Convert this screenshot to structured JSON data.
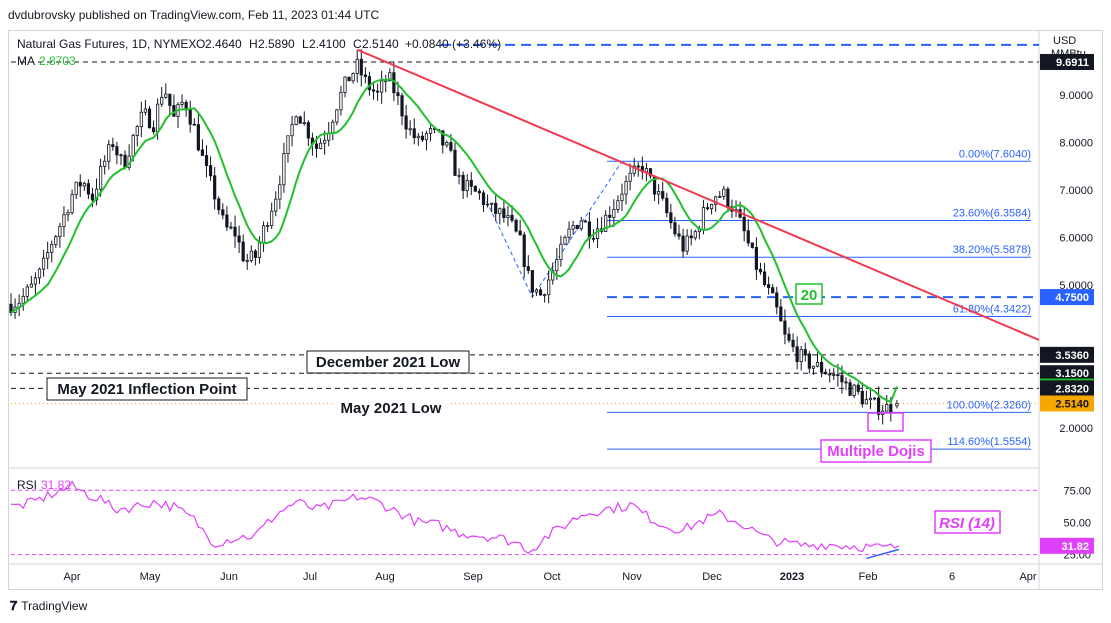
{
  "attribution": "dvdubrovsky published on TradingView.com, Feb 11, 2023 01:44 UTC",
  "footer": {
    "logo": "𝟕",
    "brand": "TradingView"
  },
  "header": {
    "symbol_line": "Natural Gas Futures, 1D, NYMEX",
    "ohlc": [
      {
        "k": "O",
        "v": "2.4640"
      },
      {
        "k": "H",
        "v": "2.5890"
      },
      {
        "k": "L",
        "v": "2.4100"
      },
      {
        "k": "C",
        "v": "2.5140"
      }
    ],
    "change": "+0.0840 (+3.46%)",
    "ma_label": "MA",
    "ma_value": "2.8703"
  },
  "axis": {
    "currency": "USD",
    "unit": "MMBtu",
    "ticks": [
      {
        "v": 9.0,
        "label": "9.0000"
      },
      {
        "v": 8.0,
        "label": "8.0000"
      },
      {
        "v": 7.0,
        "label": "7.0000"
      },
      {
        "v": 6.0,
        "label": "6.0000"
      },
      {
        "v": 5.0,
        "label": "5.0000"
      },
      {
        "v": 2.0,
        "label": "2.0000"
      }
    ],
    "price_tags": [
      {
        "v": 9.6911,
        "label": "9.6911",
        "bg": "#131722",
        "fg": "#ffffff"
      },
      {
        "v": 4.75,
        "label": "4.7500",
        "bg": "#2962ff",
        "fg": "#ffffff"
      },
      {
        "v": 3.536,
        "label": "3.5360",
        "bg": "#131722",
        "fg": "#ffffff"
      },
      {
        "v": 3.15,
        "label": "3.1500",
        "bg": "#131722",
        "fg": "#ffffff"
      },
      {
        "v": 2.8703,
        "label": "2.8703",
        "bg": "#22c02e",
        "fg": "#ffffff"
      },
      {
        "v": 2.832,
        "label": "2.8320",
        "bg": "#131722",
        "fg": "#ffffff"
      },
      {
        "v": 2.514,
        "label": "2.5140",
        "bg": "#f7a600",
        "fg": "#131722"
      }
    ],
    "time_labels": [
      {
        "label": "Apr",
        "x": 71,
        "bold": false
      },
      {
        "label": "May",
        "x": 149,
        "bold": false
      },
      {
        "label": "Jun",
        "x": 228,
        "bold": false
      },
      {
        "label": "Jul",
        "x": 309,
        "bold": false
      },
      {
        "label": "Aug",
        "x": 384,
        "bold": false
      },
      {
        "label": "Sep",
        "x": 472,
        "bold": false
      },
      {
        "label": "Oct",
        "x": 551,
        "bold": false
      },
      {
        "label": "Nov",
        "x": 631,
        "bold": false
      },
      {
        "label": "Dec",
        "x": 711,
        "bold": false
      },
      {
        "label": "2023",
        "x": 791,
        "bold": true
      },
      {
        "label": "Feb",
        "x": 867,
        "bold": false
      },
      {
        "label": "6",
        "x": 951,
        "bold": false
      },
      {
        "label": "Apr",
        "x": 1027,
        "bold": false
      }
    ]
  },
  "fibonacci": [
    {
      "label": "0.00%(7.6040)",
      "v": 7.604
    },
    {
      "label": "23.60%(6.3584)",
      "v": 6.3584
    },
    {
      "label": "38.20%(5.5878)",
      "v": 5.5878
    },
    {
      "label": "61.80%(4.3422)",
      "v": 4.3422
    },
    {
      "label": "100.00%(2.3260)",
      "v": 2.326
    },
    {
      "label": "114.60%(1.5554)",
      "v": 1.5554
    }
  ],
  "annotations": {
    "dec_2021_low": "December 2021 Low",
    "may_2021_inflection": "May 2021 Inflection Point",
    "may_2021_low": "May 2021 Low",
    "ma_badge": "20",
    "dojis": "Multiple Dojis",
    "rsi_title": "RSI (14)"
  },
  "colors": {
    "up": "#131722",
    "down": "#131722",
    "ma": "#22c02e",
    "trendline": "#f2394f",
    "fib": "#2962ff",
    "rsi": "#e040fb",
    "price_line": "#f7a600"
  },
  "rsi": {
    "label": "RSI",
    "value": "31.82",
    "levels": [
      {
        "v": 75,
        "label": "75.00"
      },
      {
        "v": 50,
        "label": "50.00"
      },
      {
        "v": 25,
        "label": "25.00"
      }
    ]
  },
  "chart_data": {
    "type": "candlestick",
    "title": "Natural Gas Futures, 1D, NYMEX",
    "ylabel": "USD/MMBtu",
    "ylim": [
      1.2,
      10.3
    ],
    "date_range": [
      "2022-03-10",
      "2023-02-10"
    ],
    "price_series": [
      [
        0,
        4.6
      ],
      [
        5,
        4.7
      ],
      [
        10,
        4.95
      ],
      [
        15,
        5.3
      ],
      [
        20,
        5.9
      ],
      [
        25,
        6.35
      ],
      [
        30,
        6.9
      ],
      [
        35,
        7.2
      ],
      [
        40,
        6.85
      ],
      [
        45,
        7.5
      ],
      [
        50,
        8.0
      ],
      [
        55,
        7.5
      ],
      [
        60,
        8.1
      ],
      [
        65,
        8.6
      ],
      [
        70,
        8.4
      ],
      [
        75,
        9.2
      ],
      [
        80,
        8.5
      ],
      [
        85,
        8.9
      ],
      [
        90,
        8.3
      ],
      [
        95,
        7.5
      ],
      [
        100,
        6.9
      ],
      [
        105,
        6.2
      ],
      [
        110,
        6.1
      ],
      [
        115,
        5.5
      ],
      [
        120,
        5.6
      ],
      [
        125,
        6.3
      ],
      [
        130,
        6.9
      ],
      [
        135,
        7.8
      ],
      [
        140,
        8.7
      ],
      [
        145,
        8.3
      ],
      [
        150,
        7.9
      ],
      [
        155,
        8.2
      ],
      [
        160,
        8.8
      ],
      [
        165,
        9.3
      ],
      [
        170,
        9.6
      ],
      [
        175,
        9.2
      ],
      [
        180,
        9.0
      ],
      [
        185,
        9.4
      ],
      [
        190,
        8.9
      ],
      [
        195,
        8.3
      ],
      [
        200,
        8.0
      ],
      [
        205,
        8.2
      ],
      [
        210,
        8.1
      ],
      [
        215,
        7.8
      ],
      [
        220,
        7.2
      ],
      [
        225,
        7.0
      ],
      [
        230,
        6.9
      ],
      [
        235,
        6.6
      ],
      [
        240,
        6.5
      ],
      [
        245,
        6.3
      ],
      [
        250,
        5.9
      ],
      [
        255,
        5.0
      ],
      [
        260,
        4.8
      ],
      [
        265,
        5.2
      ],
      [
        270,
        5.7
      ],
      [
        275,
        6.2
      ],
      [
        280,
        6.4
      ],
      [
        285,
        6.1
      ],
      [
        290,
        6.3
      ],
      [
        295,
        6.6
      ],
      [
        300,
        7.0
      ],
      [
        305,
        7.3
      ],
      [
        310,
        7.5
      ],
      [
        315,
        7.1
      ],
      [
        320,
        6.7
      ],
      [
        325,
        6.2
      ],
      [
        330,
        5.8
      ],
      [
        335,
        6.0
      ],
      [
        340,
        6.5
      ],
      [
        345,
        6.9
      ],
      [
        350,
        6.9
      ],
      [
        355,
        6.6
      ],
      [
        360,
        6.1
      ],
      [
        365,
        5.5
      ],
      [
        370,
        5.0
      ],
      [
        375,
        4.6
      ],
      [
        380,
        3.9
      ],
      [
        385,
        3.6
      ],
      [
        390,
        3.4
      ],
      [
        395,
        3.3
      ],
      [
        400,
        3.2
      ],
      [
        405,
        3.1
      ],
      [
        410,
        2.9
      ],
      [
        415,
        2.75
      ],
      [
        420,
        2.55
      ],
      [
        425,
        2.45
      ],
      [
        430,
        2.42
      ],
      [
        435,
        2.51
      ]
    ],
    "ma_period": 20,
    "ma_last": 2.8703,
    "horizontal_levels": [
      9.6911,
      4.75,
      3.536,
      3.15,
      2.832
    ],
    "trendline": [
      [
        170,
        9.95
      ],
      [
        437,
        4.1
      ]
    ],
    "rsi_series": [
      [
        0,
        62
      ],
      [
        10,
        65
      ],
      [
        20,
        72
      ],
      [
        30,
        78
      ],
      [
        40,
        70
      ],
      [
        45,
        68
      ],
      [
        50,
        60
      ],
      [
        60,
        62
      ],
      [
        70,
        66
      ],
      [
        80,
        62
      ],
      [
        90,
        52
      ],
      [
        95,
        42
      ],
      [
        100,
        34
      ],
      [
        110,
        38
      ],
      [
        120,
        40
      ],
      [
        130,
        56
      ],
      [
        140,
        66
      ],
      [
        150,
        60
      ],
      [
        160,
        64
      ],
      [
        170,
        70
      ],
      [
        180,
        66
      ],
      [
        190,
        58
      ],
      [
        200,
        50
      ],
      [
        210,
        48
      ],
      [
        220,
        42
      ],
      [
        230,
        40
      ],
      [
        240,
        38
      ],
      [
        250,
        33
      ],
      [
        255,
        28
      ],
      [
        262,
        38
      ],
      [
        270,
        46
      ],
      [
        280,
        56
      ],
      [
        290,
        60
      ],
      [
        300,
        62
      ],
      [
        305,
        64
      ],
      [
        310,
        57
      ],
      [
        320,
        48
      ],
      [
        330,
        44
      ],
      [
        340,
        52
      ],
      [
        348,
        56
      ],
      [
        360,
        48
      ],
      [
        370,
        38
      ],
      [
        380,
        34
      ],
      [
        390,
        32
      ],
      [
        400,
        33
      ],
      [
        410,
        32
      ],
      [
        420,
        31
      ],
      [
        430,
        30
      ],
      [
        437,
        31.82
      ]
    ],
    "rsi_ylim": [
      20,
      90
    ]
  }
}
